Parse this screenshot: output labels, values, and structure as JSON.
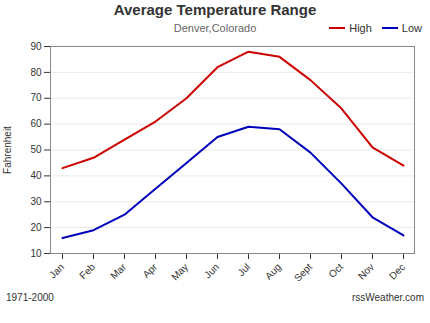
{
  "chart_data": {
    "type": "line",
    "title": "Average Temperature Range",
    "subtitle": "Denver,Colorado",
    "ylabel": "Fahrenheit",
    "categories": [
      "Jan",
      "Feb",
      "Mar",
      "Apr",
      "May",
      "Jun",
      "Jul",
      "Aug",
      "Sept",
      "Oct",
      "Nov",
      "Dec"
    ],
    "series": [
      {
        "name": "High",
        "color": "#cc0000",
        "values": [
          43,
          47,
          54,
          61,
          70,
          82,
          88,
          86,
          77,
          66,
          51,
          44
        ]
      },
      {
        "name": "Low",
        "color": "#0000bb",
        "values": [
          16,
          19,
          25,
          35,
          45,
          55,
          59,
          58,
          49,
          37,
          24,
          17
        ]
      }
    ],
    "ylim": [
      10,
      90
    ],
    "yticks": [
      10,
      20,
      30,
      40,
      50,
      60,
      70,
      80,
      90
    ],
    "grid": true,
    "legend": "upper right",
    "annotations": [
      "1971-2000",
      "rssWeather.com"
    ]
  }
}
